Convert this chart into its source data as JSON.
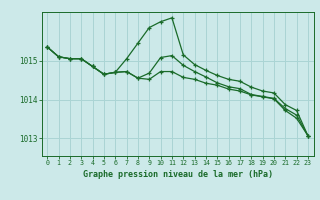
{
  "title": "Graphe pression niveau de la mer (hPa)",
  "bg_color": "#cce9e9",
  "grid_color": "#aad4d4",
  "line_color": "#1a6b2a",
  "x_ticks": [
    0,
    1,
    2,
    3,
    4,
    5,
    6,
    7,
    8,
    9,
    10,
    11,
    12,
    13,
    14,
    15,
    16,
    17,
    18,
    19,
    20,
    21,
    22,
    23
  ],
  "y_ticks": [
    1013,
    1014,
    1015
  ],
  "ylim": [
    1012.55,
    1016.25
  ],
  "xlim": [
    -0.5,
    23.5
  ],
  "line1": [
    1015.35,
    1015.1,
    1015.05,
    1015.05,
    1014.85,
    1014.65,
    1014.7,
    1015.05,
    1015.45,
    1015.85,
    1016.0,
    1016.1,
    1015.15,
    1014.9,
    1014.75,
    1014.62,
    1014.52,
    1014.47,
    1014.32,
    1014.22,
    1014.17,
    1013.87,
    1013.72,
    1013.07
  ],
  "line2": [
    1015.35,
    1015.1,
    1015.05,
    1015.05,
    1014.85,
    1014.65,
    1014.7,
    1014.72,
    1014.55,
    1014.68,
    1015.08,
    1015.13,
    1014.88,
    1014.72,
    1014.58,
    1014.43,
    1014.33,
    1014.28,
    1014.13,
    1014.08,
    1014.03,
    1013.77,
    1013.6,
    1013.07
  ],
  "line3": [
    1015.35,
    1015.1,
    1015.05,
    1015.05,
    1014.85,
    1014.65,
    1014.7,
    1014.72,
    1014.55,
    1014.52,
    1014.72,
    1014.72,
    1014.57,
    1014.52,
    1014.42,
    1014.37,
    1014.27,
    1014.22,
    1014.12,
    1014.07,
    1014.02,
    1013.72,
    1013.52,
    1013.07
  ]
}
